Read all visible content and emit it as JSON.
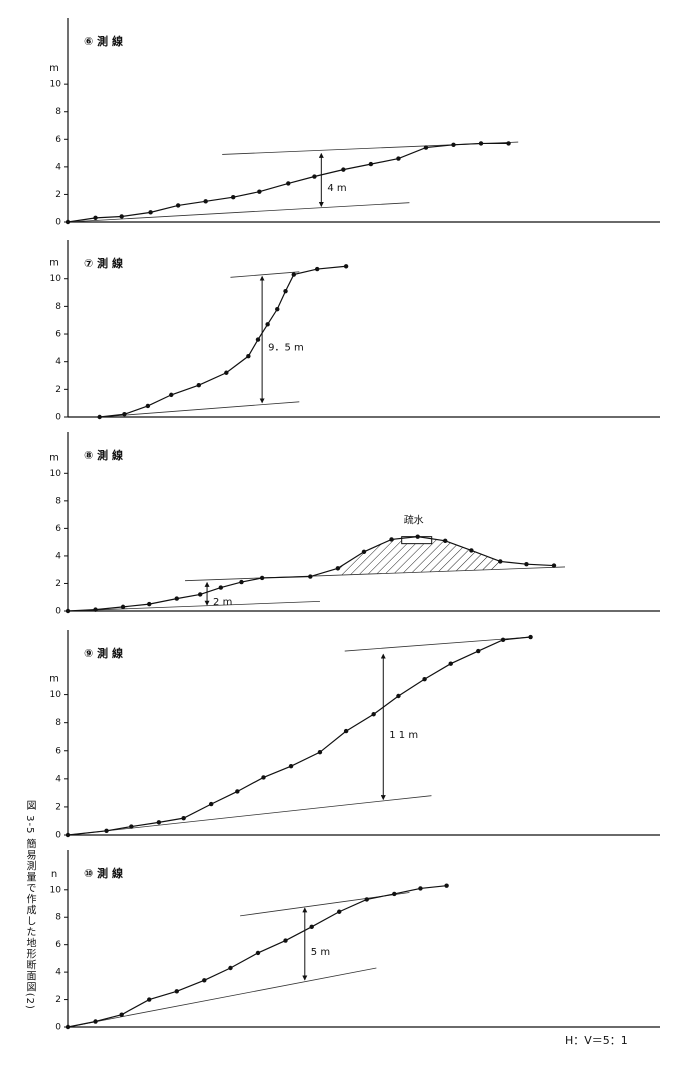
{
  "caption": "図 3-5 簡易測量で作成した地形断面図(2)",
  "scale_note": "H：V＝5：1",
  "chart_data": [
    {
      "type": "line",
      "title": "⑥ 測 線",
      "y_label": "m",
      "x": [
        0,
        2.0,
        3.9,
        6.0,
        8.0,
        10.0,
        12.0,
        13.9,
        16.0,
        17.9,
        20.0,
        22.0,
        24.0,
        26.0,
        28.0,
        30.0,
        32.0
      ],
      "values": [
        0,
        0.3,
        0.4,
        0.7,
        1.2,
        1.5,
        1.8,
        2.2,
        2.8,
        3.3,
        3.8,
        4.2,
        4.6,
        5.4,
        5.6,
        5.7,
        5.7
      ],
      "xlim": [
        0,
        43
      ],
      "ylim": [
        0,
        14.8
      ],
      "yticks": [
        0,
        2,
        4,
        6,
        8,
        10
      ],
      "reference_lines": [
        {
          "x": [
            11.2,
            32.7
          ],
          "y": [
            4.9,
            5.8
          ]
        },
        {
          "x": [
            0,
            24.8
          ],
          "y": [
            0,
            1.4
          ]
        }
      ],
      "measure": {
        "x": 18.4,
        "y": [
          5.1,
          1.0
        ],
        "label": "4 m"
      }
    },
    {
      "type": "line",
      "title": "⑦ 測 線",
      "y_label": "m",
      "x": [
        2.3,
        4.1,
        5.8,
        7.5,
        9.5,
        11.5,
        13.1,
        13.8,
        14.5,
        15.2,
        15.8,
        16.4,
        18.1,
        20.2
      ],
      "values": [
        0,
        0.2,
        0.8,
        1.6,
        2.3,
        3.2,
        4.4,
        5.6,
        6.7,
        7.8,
        9.1,
        10.3,
        10.7,
        10.9
      ],
      "xlim": [
        0,
        43
      ],
      "ylim": [
        0,
        12.8
      ],
      "yticks": [
        0,
        2,
        4,
        6,
        8,
        10
      ],
      "reference_lines": [
        {
          "x": [
            11.8,
            16.8
          ],
          "y": [
            10.1,
            10.5
          ]
        },
        {
          "x": [
            2.3,
            16.8
          ],
          "y": [
            0,
            1.1
          ]
        }
      ],
      "measure": {
        "x": 14.1,
        "y": [
          10.3,
          0.9
        ],
        "label": "9．5 m"
      }
    },
    {
      "type": "line",
      "title": "⑧ 測 線",
      "y_label": "m",
      "x": [
        0,
        2.0,
        4.0,
        5.9,
        7.9,
        9.6,
        11.1,
        12.6,
        14.1,
        17.6,
        19.6,
        21.5,
        23.5,
        25.4,
        27.4,
        29.3,
        31.4,
        33.3,
        35.3
      ],
      "values": [
        0,
        0.1,
        0.3,
        0.5,
        0.9,
        1.2,
        1.7,
        2.1,
        2.4,
        2.5,
        3.1,
        4.3,
        5.2,
        5.4,
        5.1,
        4.4,
        3.6,
        3.4,
        3.3
      ],
      "xlim": [
        0,
        43
      ],
      "ylim": [
        0,
        13.0
      ],
      "yticks": [
        0,
        2,
        4,
        6,
        8,
        10
      ],
      "reference_lines": [
        {
          "x": [
            8.5,
            36.1
          ],
          "y": [
            2.2,
            3.2
          ]
        },
        {
          "x": [
            0,
            18.3
          ],
          "y": [
            0,
            0.7
          ]
        }
      ],
      "measure": {
        "x": 10.1,
        "y": [
          2.2,
          0.3
        ],
        "label": "2 m"
      },
      "annotation": {
        "text": "疏水",
        "x": [
          19.6,
          31.4
        ]
      }
    },
    {
      "type": "line",
      "title": "⑨ 測 線",
      "y_label": "m",
      "x": [
        0,
        2.8,
        4.6,
        6.6,
        8.4,
        10.4,
        12.3,
        14.2,
        16.2,
        18.3,
        20.2,
        22.2,
        24.0,
        25.9,
        27.8,
        29.8,
        31.6,
        33.6
      ],
      "values": [
        0,
        0.3,
        0.6,
        0.9,
        1.2,
        2.2,
        3.1,
        4.1,
        4.9,
        5.9,
        7.4,
        8.6,
        9.9,
        11.1,
        12.2,
        13.1,
        13.9,
        14.1
      ],
      "xlim": [
        0,
        43
      ],
      "ylim": [
        0,
        14.6
      ],
      "yticks": [
        0,
        2,
        4,
        6,
        8,
        10
      ],
      "reference_lines": [
        {
          "x": [
            20.1,
            33.6
          ],
          "y": [
            13.1,
            14.1
          ]
        },
        {
          "x": [
            0,
            26.4
          ],
          "y": [
            0,
            2.8
          ]
        }
      ],
      "measure": {
        "x": 22.9,
        "y": [
          13.0,
          2.4
        ],
        "label": "1 1 m"
      }
    },
    {
      "type": "line",
      "title": "⑩ 測 線",
      "y_label": "n",
      "x": [
        0,
        2.0,
        3.9,
        5.9,
        7.9,
        9.9,
        11.8,
        13.8,
        15.8,
        17.7,
        19.7,
        21.7,
        23.7,
        25.6,
        27.5
      ],
      "values": [
        0,
        0.4,
        0.9,
        2.0,
        2.6,
        3.4,
        4.3,
        5.4,
        6.3,
        7.3,
        8.4,
        9.3,
        9.7,
        10.1,
        10.3
      ],
      "xlim": [
        0,
        43
      ],
      "ylim": [
        0,
        12.9
      ],
      "yticks": [
        0,
        2,
        4,
        6,
        8,
        10
      ],
      "reference_lines": [
        {
          "x": [
            12.5,
            24.8
          ],
          "y": [
            8.1,
            9.8
          ]
        },
        {
          "x": [
            0,
            22.4
          ],
          "y": [
            0,
            4.3
          ]
        }
      ],
      "measure": {
        "x": 17.2,
        "y": [
          8.8,
          3.3
        ],
        "label": "5 m"
      }
    }
  ]
}
